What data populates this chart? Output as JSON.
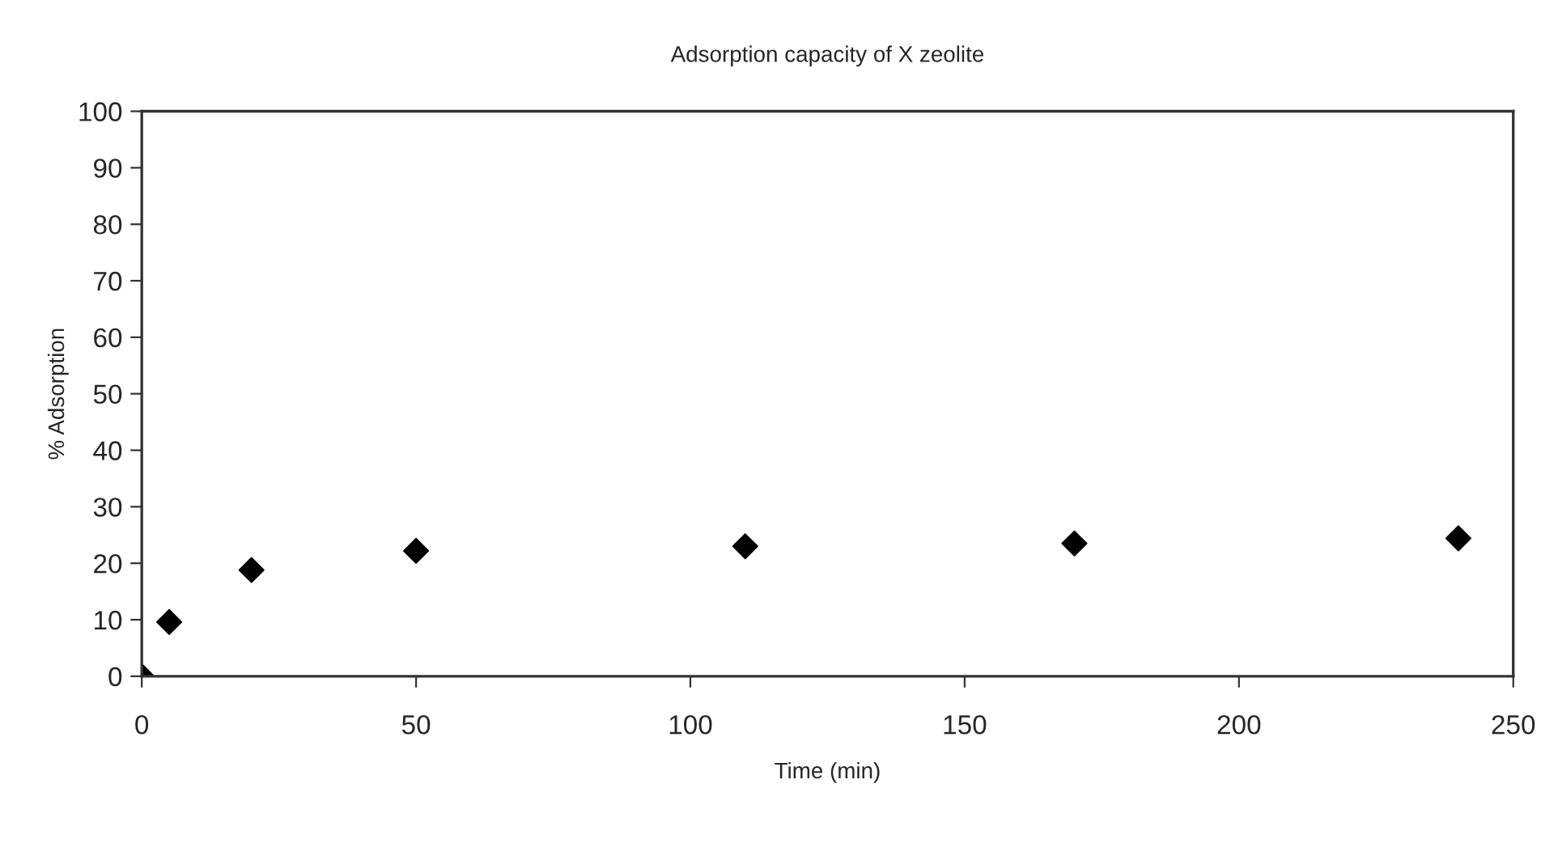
{
  "chart_data": {
    "type": "scatter",
    "title": "Adsorption capacity of X zeolite",
    "xlabel": "Time (min)",
    "ylabel": "% Adsorption",
    "x": [
      0,
      5,
      20,
      50,
      110,
      170,
      240
    ],
    "series": [
      {
        "color": "#000000",
        "values": [
          0,
          9.6,
          18.8,
          22.2,
          23.0,
          23.5,
          24.4
        ]
      }
    ],
    "xlim": [
      0,
      250
    ],
    "xticks": [
      0,
      50,
      100,
      150,
      200,
      250
    ],
    "ylim": [
      0,
      100
    ],
    "yticks": [
      0,
      10,
      20,
      30,
      40,
      50,
      60,
      70,
      80,
      90,
      100
    ],
    "grid": false,
    "legend": false,
    "marker": "diamond"
  }
}
